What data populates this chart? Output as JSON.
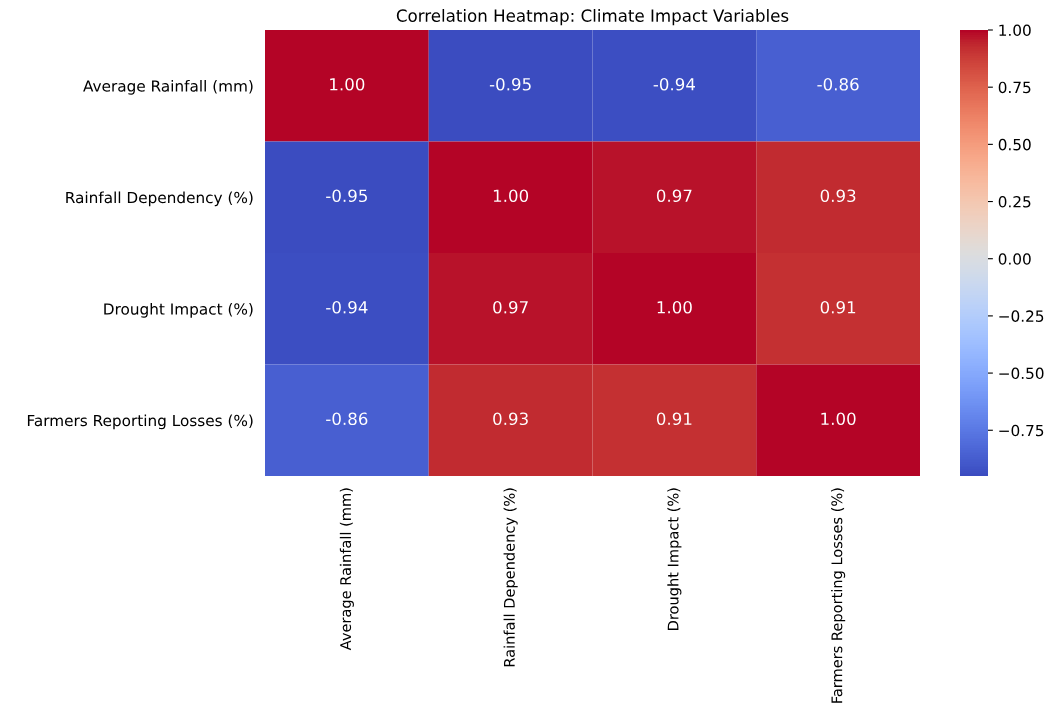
{
  "chart_data": {
    "type": "heatmap",
    "title": "Correlation Heatmap: Climate Impact Variables",
    "categories": [
      "Average Rainfall (mm)",
      "Rainfall Dependency (%)",
      "Drought Impact (%)",
      "Farmers Reporting Losses (%)"
    ],
    "y_categories": [
      "Average Rainfall (mm)",
      "Rainfall Dependency (%)",
      "Drought Impact (%)",
      "Farmers Reporting Losses (%)"
    ],
    "cells": [
      [
        1.0,
        -0.95,
        -0.94,
        -0.86
      ],
      [
        -0.95,
        1.0,
        0.97,
        0.93
      ],
      [
        -0.94,
        0.97,
        1.0,
        0.91
      ],
      [
        -0.86,
        0.93,
        0.91,
        1.0
      ]
    ],
    "cell_labels": [
      [
        "1.00",
        "-0.95",
        "-0.94",
        "-0.86"
      ],
      [
        "-0.95",
        "1.00",
        "0.97",
        "0.93"
      ],
      [
        "-0.94",
        "0.97",
        "1.00",
        "0.91"
      ],
      [
        "-0.86",
        "0.93",
        "0.91",
        "1.00"
      ]
    ],
    "clim": [
      -0.95,
      1.0
    ],
    "cticks": [
      {
        "value": -0.75,
        "label": "−0.75"
      },
      {
        "value": -0.5,
        "label": "−0.50"
      },
      {
        "value": -0.25,
        "label": "−0.25"
      },
      {
        "value": 0,
        "label": "0.00"
      },
      {
        "value": 0.25,
        "label": "0.25"
      },
      {
        "value": 0.5,
        "label": "0.50"
      },
      {
        "value": 0.75,
        "label": "0.75"
      },
      {
        "value": 1.0,
        "label": "1.00"
      }
    ]
  }
}
